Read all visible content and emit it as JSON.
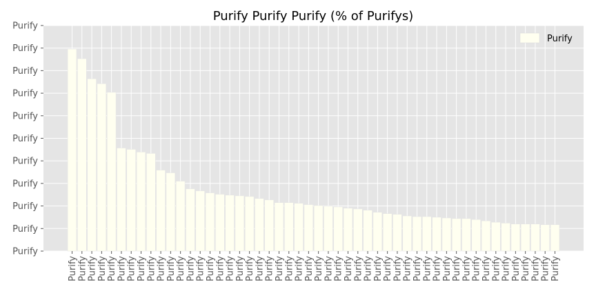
{
  "chart_data": {
    "type": "bar",
    "title": "Purify Purify Purify (% of Purifys)",
    "xlabel": "",
    "ylabel": "",
    "ylim": [
      0,
      100
    ],
    "yticks": [
      0,
      10,
      20,
      30,
      40,
      50,
      60,
      70,
      80,
      90,
      100
    ],
    "ytick_labels": [
      "Purify",
      "Purify",
      "Purify",
      "Purify",
      "Purify",
      "Purify",
      "Purify",
      "Purify",
      "Purify",
      "Purify",
      "Purify"
    ],
    "categories": [
      "Purify",
      "Purify",
      "Purify",
      "Purify",
      "Purify",
      "Purify",
      "Purify",
      "Purify",
      "Purify",
      "Purify",
      "Purify",
      "Purify",
      "Purify",
      "Purify",
      "Purify",
      "Purify",
      "Purify",
      "Purify",
      "Purify",
      "Purify",
      "Purify",
      "Purify",
      "Purify",
      "Purify",
      "Purify",
      "Purify",
      "Purify",
      "Purify",
      "Purify",
      "Purify",
      "Purify",
      "Purify",
      "Purify",
      "Purify",
      "Purify",
      "Purify",
      "Purify",
      "Purify",
      "Purify",
      "Purify",
      "Purify",
      "Purify",
      "Purify",
      "Purify",
      "Purify",
      "Purify",
      "Purify",
      "Purify",
      "Purify",
      "Purify"
    ],
    "series": [
      {
        "name": "Purify",
        "color": "#fffff0",
        "values": [
          89.6,
          85.3,
          76.4,
          74.2,
          70.4,
          45.7,
          45.1,
          43.9,
          43.3,
          35.9,
          34.7,
          31.0,
          27.6,
          26.7,
          25.8,
          25.2,
          24.8,
          24.5,
          24.2,
          23.3,
          22.7,
          21.5,
          21.5,
          21.2,
          20.6,
          20.2,
          19.9,
          19.6,
          19.0,
          18.7,
          18.1,
          17.2,
          16.6,
          16.3,
          15.6,
          15.3,
          15.3,
          15.0,
          14.7,
          14.4,
          14.4,
          14.0,
          13.4,
          12.8,
          12.4,
          12.0,
          12.0,
          12.0,
          11.7,
          11.7
        ]
      }
    ],
    "grid": true,
    "legend_position": "top-right",
    "style": {
      "axes_background": "#e5e5e5",
      "grid_color": "#ffffff",
      "bar_edge": "#e5e5e5"
    }
  }
}
